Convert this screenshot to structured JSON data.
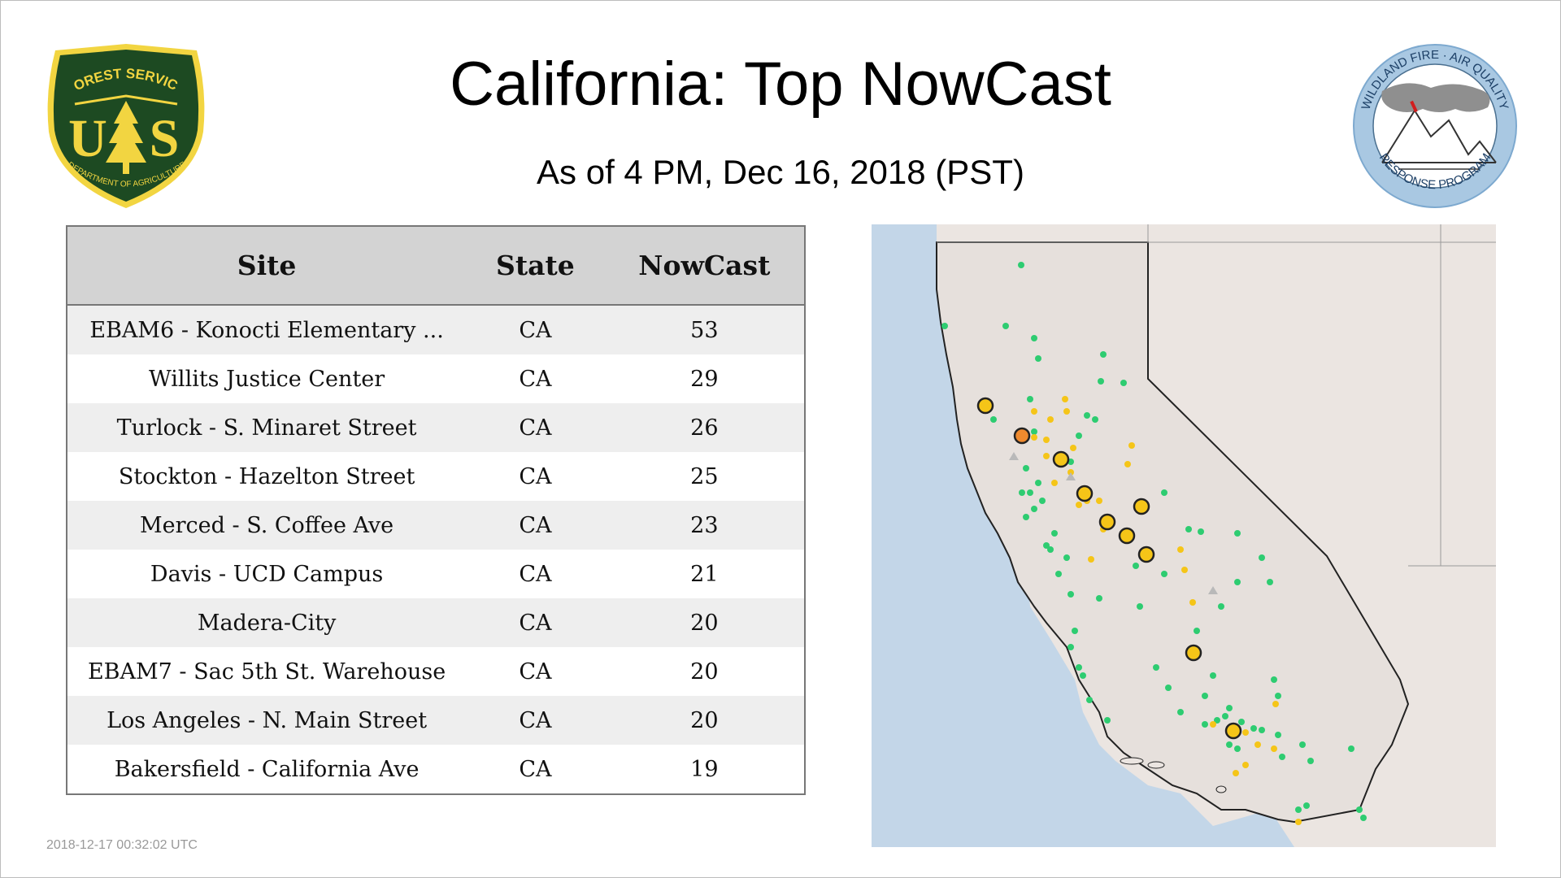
{
  "page": {
    "title": "California: Top NowCast",
    "subtitle": "As of  4 PM, Dec 16, 2018 (PST)",
    "timestamp": "2018-12-17 00:32:02 UTC"
  },
  "logos": {
    "left": {
      "icon": "us-forest-service-shield-icon",
      "top_text": "FOREST SERVICE",
      "letters": "US",
      "bottom_text": "DEPARTMENT OF AGRICULTURE"
    },
    "right": {
      "icon": "wildland-fire-air-quality-icon",
      "top_text": "WILDLAND FIRE · AIR QUALITY",
      "bottom_text": "RESPONSE PROGRAM"
    }
  },
  "table": {
    "headers": {
      "site": "Site",
      "state": "State",
      "nowcast": "NowCast"
    },
    "rows": [
      {
        "site": "EBAM6 - Konocti Elementary ...",
        "state": "CA",
        "nowcast": "53"
      },
      {
        "site": "Willits Justice Center",
        "state": "CA",
        "nowcast": "29"
      },
      {
        "site": "Turlock - S. Minaret Street",
        "state": "CA",
        "nowcast": "26"
      },
      {
        "site": "Stockton - Hazelton Street",
        "state": "CA",
        "nowcast": "25"
      },
      {
        "site": "Merced - S. Coffee Ave",
        "state": "CA",
        "nowcast": "23"
      },
      {
        "site": "Davis - UCD Campus",
        "state": "CA",
        "nowcast": "21"
      },
      {
        "site": "Madera-City",
        "state": "CA",
        "nowcast": "20"
      },
      {
        "site": "EBAM7 - Sac 5th St. Warehouse",
        "state": "CA",
        "nowcast": "20"
      },
      {
        "site": "Los Angeles - N. Main Street",
        "state": "CA",
        "nowcast": "20"
      },
      {
        "site": "Bakersfield - California Ave",
        "state": "CA",
        "nowcast": "19"
      }
    ]
  },
  "map": {
    "region": "California",
    "colors": {
      "ocean": "#c3d6e8",
      "land": "#ebe5e1",
      "good": "#2ecc71",
      "moderate": "#f5c518",
      "usg": "#ef8a2e",
      "no_data": "#b9b9b9",
      "boundary": "#222222"
    },
    "markers": {
      "orange_large": 1,
      "yellow_large": 9
    }
  }
}
